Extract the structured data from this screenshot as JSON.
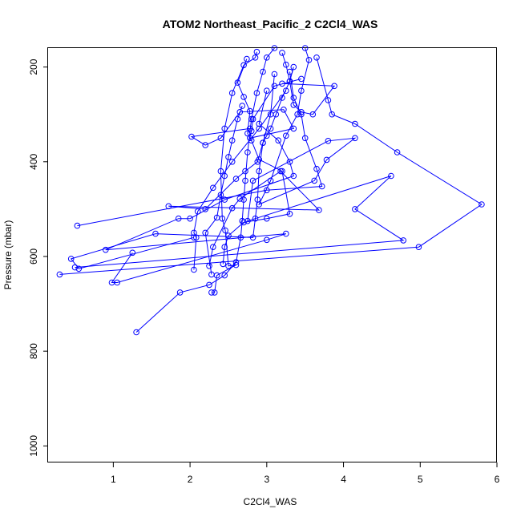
{
  "chart_data": {
    "type": "line",
    "title": "ATOM2 Northeast_Pacific_2 C2Cl4_WAS",
    "xlabel": "C2Cl4_WAS",
    "ylabel": "Pressure (mbar)",
    "xlim": [
      0.15,
      6.0
    ],
    "ylim": [
      1035,
      160
    ],
    "y_reversed": true,
    "x_ticks": [
      1,
      2,
      3,
      4,
      5,
      6
    ],
    "y_ticks": [
      200,
      400,
      600,
      800,
      1000
    ],
    "grid": false,
    "legend": "none",
    "series_color": "#0000ff",
    "marker": "open-circle",
    "series": [
      {
        "points": [
          [
            2.87,
            168
          ],
          [
            2.85,
            180
          ],
          [
            2.7,
            196
          ],
          [
            2.55,
            255
          ],
          [
            2.45,
            330
          ],
          [
            2.4,
            420
          ],
          [
            2.42,
            520
          ],
          [
            2.46,
            545
          ],
          [
            2.5,
            620
          ],
          [
            2.6,
            618
          ],
          [
            2.35,
            640
          ],
          [
            2.32,
            676
          ],
          [
            2.28,
            676
          ]
        ]
      },
      {
        "points": [
          [
            3.1,
            160
          ],
          [
            3.0,
            180
          ],
          [
            2.95,
            210
          ],
          [
            2.87,
            255
          ],
          [
            2.8,
            310
          ],
          [
            2.75,
            380
          ],
          [
            2.72,
            440
          ],
          [
            2.7,
            480
          ],
          [
            2.68,
            525
          ],
          [
            2.66,
            560
          ],
          [
            2.6,
            612
          ],
          [
            2.45,
            640
          ],
          [
            2.25,
            660
          ],
          [
            1.87,
            676
          ],
          [
            1.3,
            760
          ]
        ]
      },
      {
        "points": [
          [
            3.2,
            170
          ],
          [
            3.25,
            195
          ],
          [
            3.3,
            230
          ],
          [
            3.35,
            280
          ],
          [
            3.45,
            295
          ],
          [
            3.6,
            300
          ],
          [
            3.88,
            240
          ],
          [
            3.2,
            235
          ]
        ]
      },
      {
        "points": [
          [
            3.45,
            225
          ],
          [
            3.1,
            240
          ],
          [
            2.82,
            310
          ],
          [
            2.8,
            335
          ],
          [
            2.78,
            350
          ],
          [
            3.35,
            330
          ],
          [
            3.22,
            290
          ],
          [
            2.65,
            295
          ],
          [
            2.4,
            350
          ],
          [
            2.2,
            365
          ],
          [
            2.02,
            347
          ],
          [
            2.78,
            330
          ]
        ]
      },
      {
        "points": [
          [
            3.65,
            180
          ],
          [
            3.8,
            270
          ],
          [
            3.85,
            300
          ],
          [
            4.15,
            320
          ],
          [
            4.7,
            380
          ],
          [
            5.8,
            490
          ],
          [
            4.98,
            580
          ],
          [
            0.3,
            638
          ]
        ]
      },
      {
        "points": [
          [
            3.3,
            210
          ],
          [
            3.35,
            265
          ],
          [
            3.45,
            300
          ],
          [
            3.5,
            350
          ],
          [
            3.65,
            415
          ],
          [
            3.72,
            452
          ],
          [
            3.0,
            460
          ],
          [
            0.53,
            535
          ]
        ]
      },
      {
        "points": [
          [
            3.1,
            215
          ],
          [
            3.05,
            300
          ],
          [
            2.95,
            360
          ],
          [
            2.9,
            420
          ],
          [
            2.88,
            480
          ],
          [
            2.85,
            520
          ],
          [
            2.82,
            560
          ],
          [
            1.55,
            552
          ],
          [
            0.45,
            605
          ],
          [
            0.55,
            626
          ],
          [
            2.05,
            560
          ]
        ]
      },
      {
        "points": [
          [
            3.0,
            250
          ],
          [
            2.9,
            320
          ],
          [
            3.15,
            355
          ],
          [
            3.3,
            400
          ],
          [
            3.35,
            430
          ],
          [
            2.45,
            480
          ],
          [
            2.0,
            520
          ],
          [
            1.85,
            520
          ],
          [
            0.9,
            586
          ],
          [
            3.25,
            552
          ],
          [
            3.0,
            565
          ],
          [
            1.05,
            655
          ],
          [
            0.98,
            655
          ],
          [
            1.25,
            592
          ]
        ]
      },
      {
        "points": [
          [
            3.25,
            250
          ],
          [
            2.9,
            330
          ],
          [
            2.55,
            400
          ],
          [
            2.3,
            455
          ],
          [
            2.1,
            505
          ],
          [
            2.05,
            550
          ],
          [
            2.08,
            560
          ],
          [
            2.05,
            628
          ]
        ]
      },
      {
        "points": [
          [
            3.5,
            160
          ],
          [
            3.55,
            185
          ],
          [
            3.45,
            250
          ],
          [
            3.4,
            300
          ],
          [
            3.25,
            345
          ],
          [
            3.05,
            440
          ],
          [
            2.9,
            490
          ],
          [
            3.62,
            440
          ],
          [
            3.78,
            396
          ],
          [
            4.15,
            350
          ],
          [
            3.8,
            356
          ],
          [
            2.82,
            440
          ],
          [
            2.75,
            525
          ],
          [
            4.62,
            430
          ],
          [
            4.15,
            500
          ],
          [
            4.78,
            566
          ],
          [
            0.5,
            623
          ]
        ]
      },
      {
        "points": [
          [
            2.68,
            282
          ],
          [
            2.62,
            310
          ],
          [
            2.55,
            355
          ],
          [
            2.5,
            390
          ],
          [
            2.45,
            430
          ],
          [
            2.4,
            470
          ],
          [
            2.35,
            518
          ],
          [
            2.2,
            550
          ],
          [
            2.28,
            638
          ]
        ]
      },
      {
        "points": [
          [
            3.35,
            200
          ],
          [
            3.3,
            230
          ],
          [
            3.2,
            265
          ],
          [
            3.12,
            300
          ],
          [
            3.05,
            330
          ],
          [
            3.0,
            345
          ],
          [
            2.95,
            360
          ],
          [
            2.88,
            400
          ],
          [
            2.72,
            420
          ],
          [
            2.6,
            436
          ],
          [
            2.2,
            500
          ],
          [
            1.72,
            494
          ],
          [
            3.68,
            502
          ],
          [
            3.18,
            420
          ],
          [
            2.65,
            478
          ],
          [
            2.55,
            498
          ],
          [
            2.3,
            580
          ],
          [
            2.25,
            620
          ]
        ]
      },
      {
        "points": [
          [
            2.74,
            183
          ],
          [
            2.62,
            233
          ],
          [
            2.7,
            263
          ],
          [
            2.78,
            293
          ],
          [
            2.75,
            340
          ],
          [
            2.8,
            355
          ],
          [
            2.9,
            395
          ],
          [
            3.2,
            420
          ],
          [
            3.3,
            510
          ],
          [
            3.0,
            520
          ],
          [
            2.7,
            528
          ],
          [
            2.5,
            556
          ],
          [
            2.45,
            580
          ],
          [
            2.43,
            616
          ]
        ]
      }
    ]
  }
}
